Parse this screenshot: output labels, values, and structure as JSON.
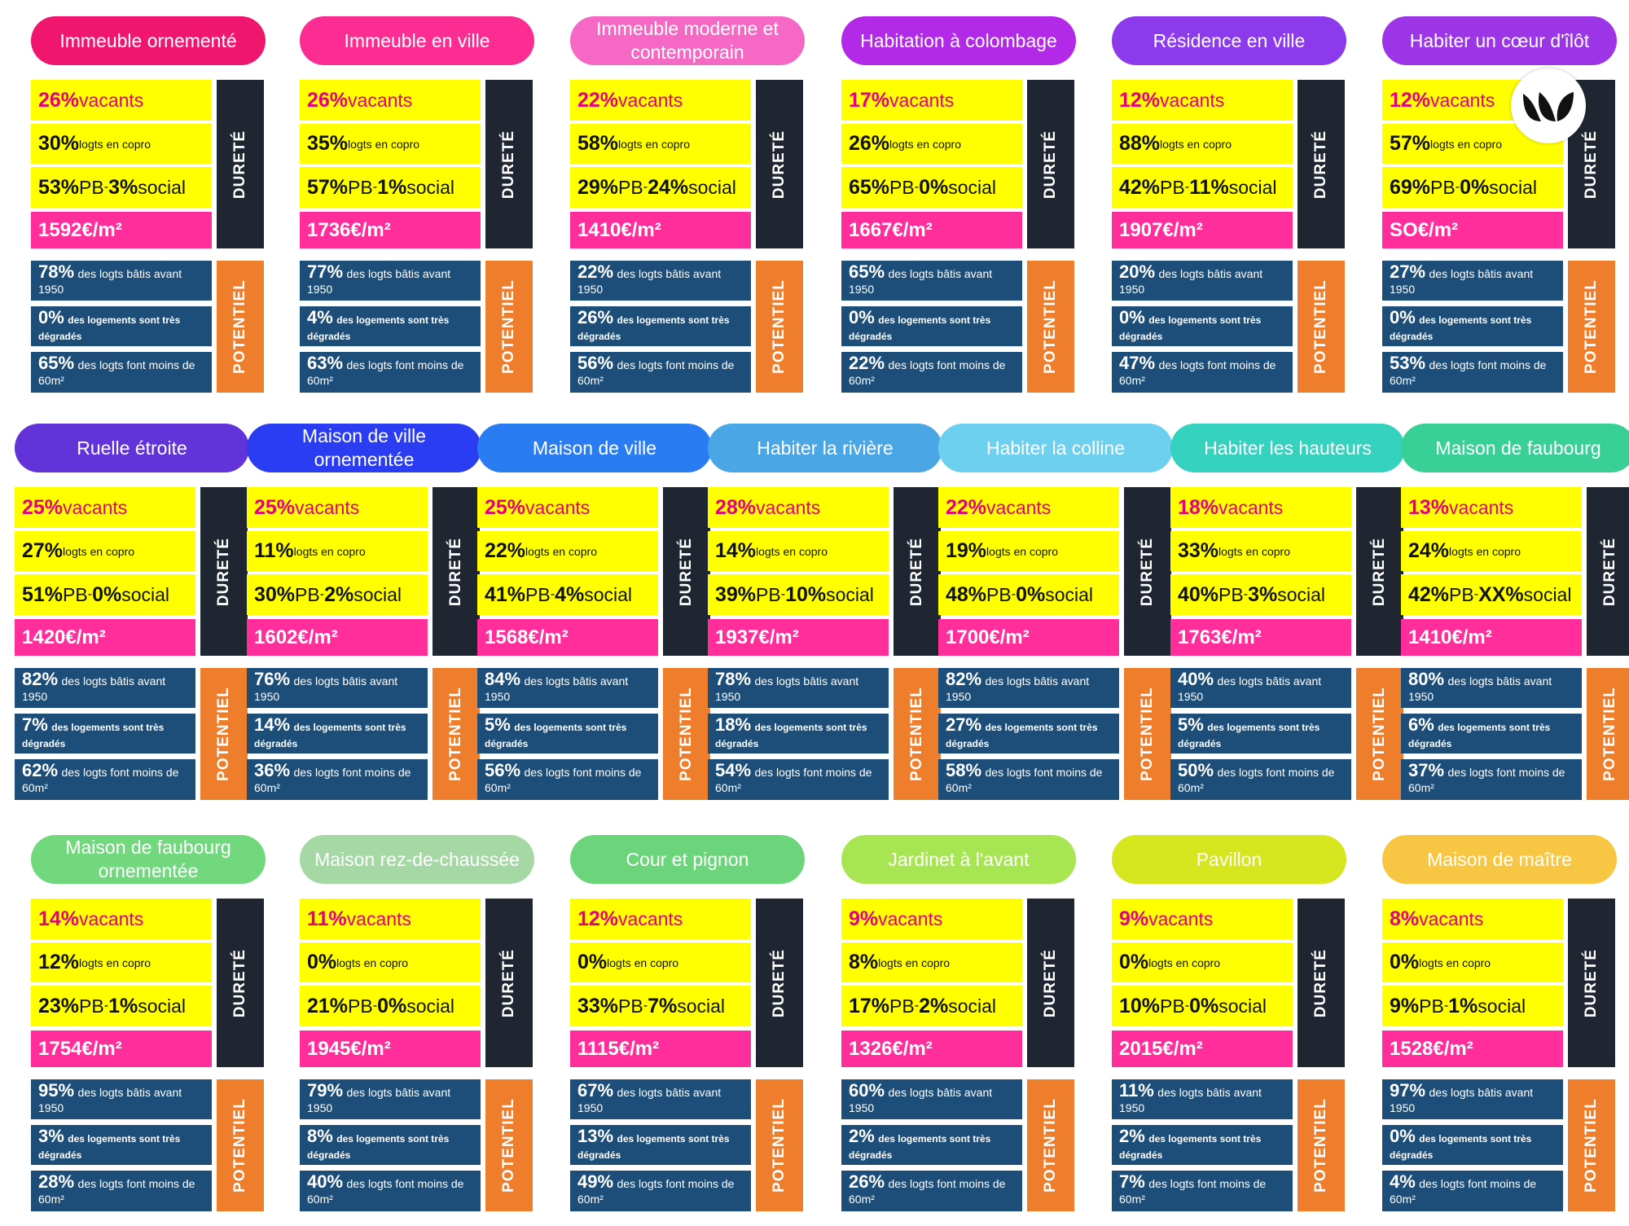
{
  "labels": {
    "durete": "DURETÉ",
    "potentiel": "POTENTIEL",
    "vacants": "vacants",
    "copro": "logts en copro",
    "pb": "PB",
    "social": "social",
    "price_unit": "€/m²",
    "bati": "des logts bâtis avant 1950",
    "degrade": "des logements sont très dégradés",
    "small": "des logts font moins de 60m²"
  },
  "logo_icon": "leaf-logo-icon",
  "cards": [
    {
      "title": "Immeuble ornementé",
      "color": "#f0166e",
      "vac": "26%",
      "copro": "30%",
      "pb": "53%",
      "soc": "3%",
      "price": "1592",
      "bat": "78%",
      "deg": "0%",
      "sm": "65%"
    },
    {
      "title": "Immeuble en ville",
      "color": "#fb2c92",
      "vac": "26%",
      "copro": "35%",
      "pb": "57%",
      "soc": "1%",
      "price": "1736",
      "bat": "77%",
      "deg": "4%",
      "sm": "63%"
    },
    {
      "title": "Immeuble moderne et contemporain",
      "color": "#f569c4",
      "vac": "22%",
      "copro": "58%",
      "pb": "29%",
      "soc": "24%",
      "price": "1410",
      "bat": "22%",
      "deg": "26%",
      "sm": "56%"
    },
    {
      "title": "Habitation à colombage",
      "color": "#b329e8",
      "vac": "17%",
      "copro": "26%",
      "pb": "65%",
      "soc": "0%",
      "price": "1667",
      "bat": "65%",
      "deg": "0%",
      "sm": "22%"
    },
    {
      "title": "Résidence en ville",
      "color": "#8d39ec",
      "vac": "12%",
      "copro": "88%",
      "pb": "42%",
      "soc": "11%",
      "price": "1907",
      "bat": "20%",
      "deg": "0%",
      "sm": "47%"
    },
    {
      "title": "Habiter un cœur d'îlôt",
      "color": "#9b35e6",
      "vac": "12%",
      "copro": "57%",
      "pb": "69%",
      "soc": "0%",
      "price": "SO",
      "bat": "27%",
      "deg": "0%",
      "sm": "53%"
    },
    {
      "title": "Ruelle étroite",
      "color": "#6233d9",
      "vac": "25%",
      "copro": "27%",
      "pb": "51%",
      "soc": "0%",
      "price": "1420",
      "bat": "82%",
      "deg": "7%",
      "sm": "62%"
    },
    {
      "title": "Maison de ville ornementée",
      "color": "#2a3df2",
      "vac": "25%",
      "copro": "11%",
      "pb": "30%",
      "soc": "2%",
      "price": "1602",
      "bat": "76%",
      "deg": "14%",
      "sm": "36%"
    },
    {
      "title": "Maison de ville",
      "color": "#2a7cf2",
      "vac": "25%",
      "copro": "22%",
      "pb": "41%",
      "soc": "4%",
      "price": "1568",
      "bat": "84%",
      "deg": "5%",
      "sm": "56%"
    },
    {
      "title": "Habiter la rivière",
      "color": "#4aa6e4",
      "vac": "28%",
      "copro": "14%",
      "pb": "39%",
      "soc": "10%",
      "price": "1937",
      "bat": "78%",
      "deg": "18%",
      "sm": "54%"
    },
    {
      "title": "Habiter la colline",
      "color": "#6cd0ee",
      "vac": "22%",
      "copro": "19%",
      "pb": "48%",
      "soc": "0%",
      "price": "1700",
      "bat": "82%",
      "deg": "27%",
      "sm": "58%"
    },
    {
      "title": "Habiter les hauteurs",
      "color": "#35d2bf",
      "vac": "18%",
      "copro": "33%",
      "pb": "40%",
      "soc": "3%",
      "price": "1763",
      "bat": "40%",
      "deg": "5%",
      "sm": "50%"
    },
    {
      "title": "Maison de faubourg",
      "color": "#38d096",
      "vac": "13%",
      "copro": "24%",
      "pb": "42%",
      "soc": "XX%",
      "price": "1410",
      "bat": "80%",
      "deg": "6%",
      "sm": "37%"
    },
    {
      "title": "Maison de faubourg ornementée",
      "color": "#72d87e",
      "vac": "14%",
      "copro": "12%",
      "pb": "23%",
      "soc": "1%",
      "price": "1754",
      "bat": "95%",
      "deg": "3%",
      "sm": "28%"
    },
    {
      "title": "Maison rez-de-chaussée",
      "color": "#a6d8a6",
      "vac": "11%",
      "copro": "0%",
      "pb": "21%",
      "soc": "0%",
      "price": "1945",
      "bat": "79%",
      "deg": "8%",
      "sm": "40%"
    },
    {
      "title": "Cour et pignon",
      "color": "#6cd47a",
      "vac": "12%",
      "copro": "0%",
      "pb": "33%",
      "soc": "7%",
      "price": "1115",
      "bat": "67%",
      "deg": "13%",
      "sm": "49%"
    },
    {
      "title": "Jardinet à l'avant",
      "color": "#a8e553",
      "vac": "9%",
      "copro": "8%",
      "pb": "17%",
      "soc": "2%",
      "price": "1326",
      "bat": "60%",
      "deg": "2%",
      "sm": "26%"
    },
    {
      "title": "Pavillon",
      "color": "#d6e61f",
      "vac": "9%",
      "copro": "0%",
      "pb": "10%",
      "soc": "0%",
      "price": "2015",
      "bat": "11%",
      "deg": "2%",
      "sm": "7%"
    },
    {
      "title": "Maison de maître",
      "color": "#f7c744",
      "vac": "8%",
      "copro": "0%",
      "pb": "9%",
      "soc": "1%",
      "price": "1528",
      "bat": "97%",
      "deg": "0%",
      "sm": "4%"
    }
  ]
}
